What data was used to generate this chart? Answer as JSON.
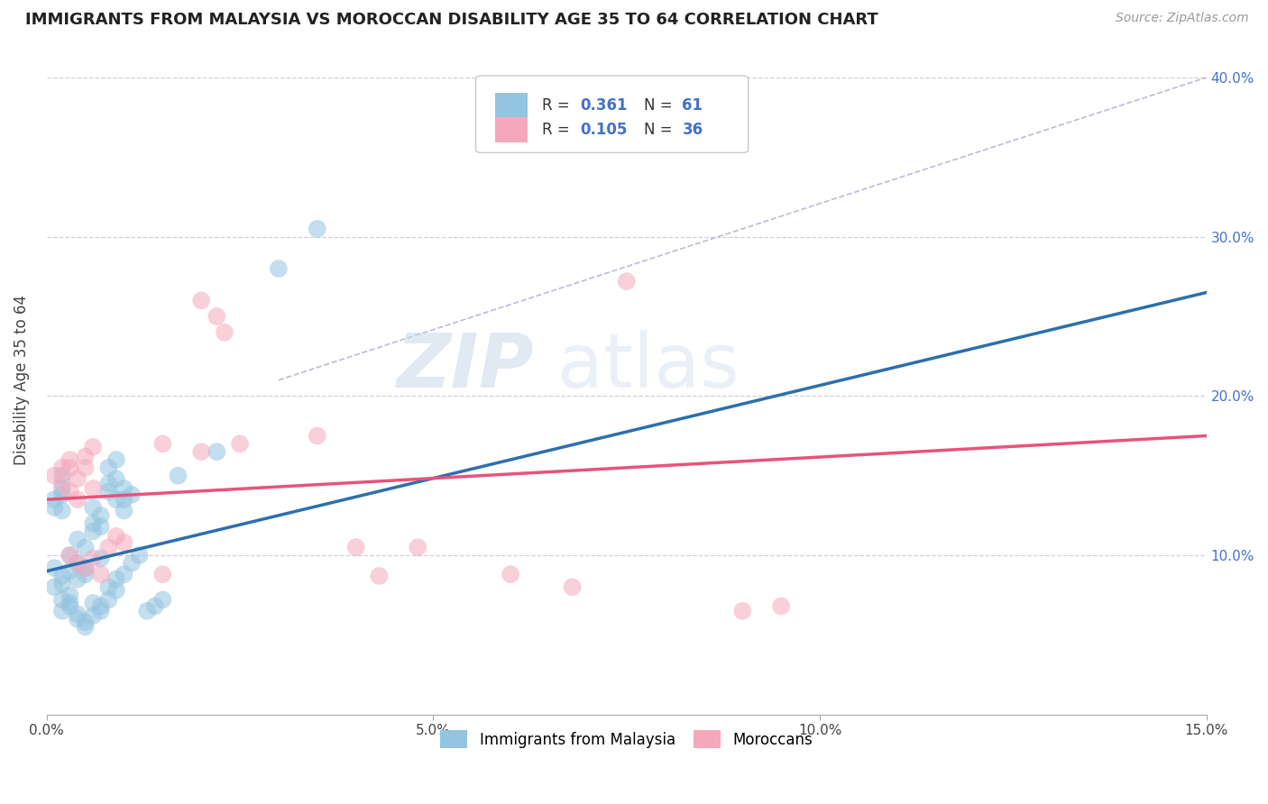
{
  "title": "IMMIGRANTS FROM MALAYSIA VS MOROCCAN DISABILITY AGE 35 TO 64 CORRELATION CHART",
  "source": "Source: ZipAtlas.com",
  "ylabel": "Disability Age 35 to 64",
  "xmin": 0.0,
  "xmax": 0.15,
  "ymin": 0.0,
  "ymax": 0.42,
  "xticks": [
    0.0,
    0.05,
    0.1,
    0.15
  ],
  "xtick_labels": [
    "0.0%",
    "5.0%",
    "10.0%",
    "15.0%"
  ],
  "yticks": [
    0.0,
    0.1,
    0.2,
    0.3,
    0.4
  ],
  "ytick_labels_right": [
    "",
    "10.0%",
    "20.0%",
    "30.0%",
    "40.0%"
  ],
  "blue_color": "#93c4e0",
  "pink_color": "#f5a8bc",
  "blue_line_color": "#2c6fad",
  "pink_line_color": "#e8537a",
  "tick_color": "#4472c4",
  "blue_scatter": [
    [
      0.001,
      0.092
    ],
    [
      0.002,
      0.087
    ],
    [
      0.002,
      0.082
    ],
    [
      0.003,
      0.09
    ],
    [
      0.003,
      0.1
    ],
    [
      0.003,
      0.075
    ],
    [
      0.004,
      0.085
    ],
    [
      0.004,
      0.11
    ],
    [
      0.004,
      0.095
    ],
    [
      0.005,
      0.088
    ],
    [
      0.005,
      0.105
    ],
    [
      0.005,
      0.092
    ],
    [
      0.006,
      0.12
    ],
    [
      0.006,
      0.115
    ],
    [
      0.006,
      0.13
    ],
    [
      0.007,
      0.098
    ],
    [
      0.007,
      0.125
    ],
    [
      0.007,
      0.118
    ],
    [
      0.008,
      0.14
    ],
    [
      0.008,
      0.155
    ],
    [
      0.008,
      0.145
    ],
    [
      0.009,
      0.135
    ],
    [
      0.009,
      0.16
    ],
    [
      0.009,
      0.148
    ],
    [
      0.01,
      0.135
    ],
    [
      0.01,
      0.128
    ],
    [
      0.01,
      0.142
    ],
    [
      0.011,
      0.138
    ],
    [
      0.001,
      0.08
    ],
    [
      0.002,
      0.072
    ],
    [
      0.002,
      0.065
    ],
    [
      0.003,
      0.07
    ],
    [
      0.003,
      0.068
    ],
    [
      0.004,
      0.06
    ],
    [
      0.004,
      0.063
    ],
    [
      0.005,
      0.055
    ],
    [
      0.005,
      0.058
    ],
    [
      0.006,
      0.062
    ],
    [
      0.006,
      0.07
    ],
    [
      0.007,
      0.065
    ],
    [
      0.007,
      0.068
    ],
    [
      0.008,
      0.072
    ],
    [
      0.008,
      0.08
    ],
    [
      0.009,
      0.078
    ],
    [
      0.009,
      0.085
    ],
    [
      0.01,
      0.088
    ],
    [
      0.011,
      0.095
    ],
    [
      0.012,
      0.1
    ],
    [
      0.013,
      0.065
    ],
    [
      0.014,
      0.068
    ],
    [
      0.015,
      0.072
    ],
    [
      0.017,
      0.15
    ],
    [
      0.022,
      0.165
    ],
    [
      0.001,
      0.135
    ],
    [
      0.001,
      0.13
    ],
    [
      0.002,
      0.128
    ],
    [
      0.002,
      0.142
    ],
    [
      0.002,
      0.138
    ],
    [
      0.002,
      0.15
    ],
    [
      0.03,
      0.28
    ],
    [
      0.035,
      0.305
    ]
  ],
  "pink_scatter": [
    [
      0.001,
      0.15
    ],
    [
      0.002,
      0.145
    ],
    [
      0.002,
      0.155
    ],
    [
      0.003,
      0.14
    ],
    [
      0.003,
      0.16
    ],
    [
      0.003,
      0.155
    ],
    [
      0.004,
      0.135
    ],
    [
      0.004,
      0.148
    ],
    [
      0.005,
      0.162
    ],
    [
      0.005,
      0.155
    ],
    [
      0.006,
      0.168
    ],
    [
      0.006,
      0.142
    ],
    [
      0.003,
      0.1
    ],
    [
      0.004,
      0.095
    ],
    [
      0.005,
      0.092
    ],
    [
      0.006,
      0.098
    ],
    [
      0.007,
      0.088
    ],
    [
      0.008,
      0.105
    ],
    [
      0.009,
      0.112
    ],
    [
      0.01,
      0.108
    ],
    [
      0.015,
      0.17
    ],
    [
      0.02,
      0.165
    ],
    [
      0.025,
      0.17
    ],
    [
      0.035,
      0.175
    ],
    [
      0.04,
      0.105
    ],
    [
      0.043,
      0.087
    ],
    [
      0.048,
      0.105
    ],
    [
      0.02,
      0.26
    ],
    [
      0.022,
      0.25
    ],
    [
      0.023,
      0.24
    ],
    [
      0.075,
      0.272
    ],
    [
      0.015,
      0.088
    ],
    [
      0.095,
      0.068
    ],
    [
      0.06,
      0.088
    ],
    [
      0.068,
      0.08
    ],
    [
      0.09,
      0.065
    ]
  ],
  "blue_line": [
    [
      0.0,
      0.09
    ],
    [
      0.15,
      0.265
    ]
  ],
  "pink_line": [
    [
      0.0,
      0.135
    ],
    [
      0.15,
      0.175
    ]
  ],
  "gray_dashed_line": [
    [
      0.03,
      0.21
    ],
    [
      0.15,
      0.4
    ]
  ],
  "watermark_zip": "ZIP",
  "watermark_atlas": "atlas",
  "background_color": "#ffffff",
  "grid_color": "#d0d0d0"
}
